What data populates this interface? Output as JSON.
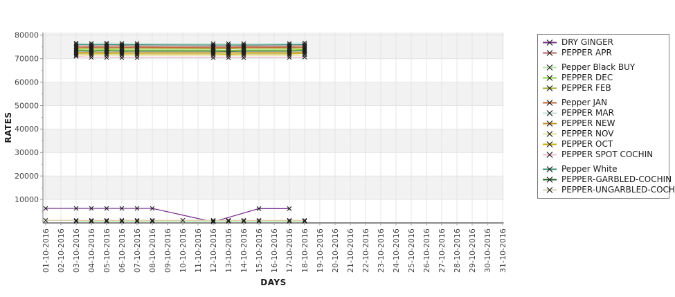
{
  "chart_data": {
    "type": "line",
    "title": "",
    "marker": "x",
    "x": {
      "label": "DAYS",
      "tick_labels": [
        "01-10-2016",
        "02-10-2016",
        "03-10-2016",
        "04-10-2016",
        "05-10-2016",
        "06-10-2016",
        "07-10-2016",
        "08-10-2016",
        "09-10-2016",
        "10-10-2016",
        "11-10-2016",
        "12-10-2016",
        "13-10-2016",
        "14-10-2016",
        "15-10-2016",
        "16-10-2016",
        "17-10-2016",
        "18-10-2016",
        "19-10-2016",
        "20-10-2016",
        "21-10-2016",
        "22-10-2016",
        "23-10-2016",
        "24-10-2016",
        "25-10-2016",
        "26-10-2016",
        "27-10-2016",
        "28-10-2016",
        "29-10-2016",
        "30-10-2016",
        "31-10-2016"
      ]
    },
    "y": {
      "label": "RATES",
      "tick_labels": [
        10000,
        20000,
        30000,
        40000,
        50000,
        60000,
        70000,
        80000
      ],
      "minor_step": 5000,
      "range": [
        0,
        81500
      ]
    },
    "legend": {
      "position": "right-outside",
      "group_breaks": [
        2,
        5,
        11
      ]
    },
    "plot_colors": {
      "band_gray": "#f2f2f2",
      "band_white": "#ffffff",
      "gridline": "#e4e4e4",
      "axis_line": "#8c8c8c",
      "baseline": "#787878",
      "tick": "#999999",
      "tick_label": "#3f3f3f",
      "marker": "#1a1a1a"
    },
    "series": [
      {
        "name": "DRY GINGER",
        "color": "#7b2f8e",
        "points": [
          [
            1,
            6200
          ],
          [
            3,
            6200
          ],
          [
            4,
            6200
          ],
          [
            5,
            6200
          ],
          [
            6,
            6200
          ],
          [
            7,
            6200
          ],
          [
            8,
            6200
          ],
          [
            12,
            450
          ],
          [
            15,
            6100
          ],
          [
            17,
            6100
          ]
        ]
      },
      {
        "name": "PEPPER APR",
        "color": "#bb5f5f",
        "points": [
          [
            3,
            75400
          ],
          [
            4,
            75300
          ],
          [
            5,
            75400
          ],
          [
            6,
            75400
          ],
          [
            7,
            75300
          ],
          [
            12,
            75200
          ],
          [
            13,
            75200
          ],
          [
            14,
            75300
          ],
          [
            17,
            75300
          ],
          [
            18,
            75500
          ]
        ]
      },
      {
        "name": "Pepper Black BUY",
        "color": "#b7e8a8",
        "points": [
          [
            3,
            700
          ],
          [
            4,
            700
          ],
          [
            5,
            700
          ],
          [
            6,
            700
          ],
          [
            7,
            700
          ],
          [
            8,
            700
          ],
          [
            12,
            700
          ],
          [
            13,
            700
          ],
          [
            14,
            700
          ],
          [
            15,
            700
          ],
          [
            17,
            700
          ],
          [
            18,
            700
          ]
        ]
      },
      {
        "name": "PEPPER DEC",
        "color": "#86d42f",
        "points": [
          [
            3,
            73800
          ],
          [
            4,
            73700
          ],
          [
            5,
            73800
          ],
          [
            6,
            73700
          ],
          [
            7,
            73700
          ],
          [
            12,
            73700
          ],
          [
            13,
            73600
          ],
          [
            14,
            73700
          ],
          [
            17,
            73700
          ],
          [
            18,
            73900
          ]
        ]
      },
      {
        "name": "PEPPER FEB",
        "color": "#a3a821",
        "points": [
          [
            3,
            74400
          ],
          [
            4,
            74300
          ],
          [
            5,
            74400
          ],
          [
            6,
            74400
          ],
          [
            7,
            74300
          ],
          [
            12,
            74300
          ],
          [
            13,
            74300
          ],
          [
            14,
            74300
          ],
          [
            17,
            74400
          ],
          [
            18,
            74500
          ]
        ]
      },
      {
        "name": "Pepper JAN",
        "color": "#bf6436",
        "points": [
          [
            3,
            74900
          ],
          [
            4,
            74800
          ],
          [
            5,
            74900
          ],
          [
            6,
            74800
          ],
          [
            7,
            74800
          ],
          [
            12,
            74700
          ],
          [
            13,
            74700
          ],
          [
            14,
            74800
          ],
          [
            17,
            74800
          ],
          [
            18,
            74900
          ]
        ]
      },
      {
        "name": "PEPPER MAR",
        "color": "#bfe0d5",
        "points": [
          [
            3,
            76600
          ],
          [
            4,
            76500
          ],
          [
            5,
            76600
          ],
          [
            6,
            76500
          ],
          [
            7,
            76500
          ],
          [
            12,
            76400
          ],
          [
            13,
            76400
          ],
          [
            14,
            76400
          ],
          [
            17,
            76500
          ],
          [
            18,
            76700
          ]
        ]
      },
      {
        "name": "PEPPER NEW",
        "color": "#bd8e1d",
        "points": [
          [
            3,
            72700
          ],
          [
            4,
            72600
          ],
          [
            5,
            72700
          ],
          [
            6,
            72600
          ],
          [
            7,
            72600
          ],
          [
            12,
            72600
          ],
          [
            13,
            72500
          ],
          [
            14,
            72600
          ],
          [
            17,
            72600
          ],
          [
            18,
            72800
          ]
        ]
      },
      {
        "name": "PEPPER NOV",
        "color": "#e5e293",
        "points": [
          [
            3,
            71500
          ],
          [
            4,
            71400
          ],
          [
            5,
            71500
          ],
          [
            6,
            71400
          ],
          [
            7,
            71400
          ],
          [
            12,
            71400
          ],
          [
            13,
            71300
          ],
          [
            14,
            71400
          ],
          [
            17,
            71400
          ],
          [
            18,
            71600
          ]
        ]
      },
      {
        "name": "PEPPER OCT",
        "color": "#c9ab06",
        "points": [
          [
            3,
            72100
          ],
          [
            4,
            72000
          ],
          [
            5,
            72100
          ],
          [
            6,
            72000
          ],
          [
            7,
            72000
          ],
          [
            12,
            72000
          ],
          [
            13,
            71900
          ],
          [
            14,
            72000
          ],
          [
            17,
            72000
          ],
          [
            18,
            72200
          ]
        ]
      },
      {
        "name": "PEPPER SPOT COCHIN",
        "color": "#f4bccf",
        "points": [
          [
            3,
            71000
          ],
          [
            4,
            70500
          ],
          [
            5,
            70500
          ],
          [
            6,
            70400
          ],
          [
            7,
            70400
          ],
          [
            12,
            70400
          ],
          [
            13,
            70400
          ],
          [
            14,
            70400
          ],
          [
            17,
            70500
          ],
          [
            18,
            70600
          ]
        ]
      },
      {
        "name": "Pepper White",
        "color": "#2f8a70",
        "points": [
          [
            3,
            76000
          ],
          [
            4,
            75900
          ],
          [
            5,
            76000
          ],
          [
            6,
            75900
          ],
          [
            7,
            75900
          ],
          [
            12,
            75800
          ],
          [
            13,
            75800
          ],
          [
            14,
            75800
          ],
          [
            17,
            75900
          ],
          [
            18,
            76000
          ]
        ]
      },
      {
        "name": "PEPPER-GARBLED-COCHIN",
        "color": "#215e21",
        "points": [
          [
            3,
            73300
          ],
          [
            4,
            73200
          ],
          [
            5,
            73300
          ],
          [
            6,
            73200
          ],
          [
            7,
            73200
          ],
          [
            12,
            73200
          ],
          [
            13,
            73100
          ],
          [
            14,
            73200
          ],
          [
            17,
            73200
          ],
          [
            18,
            73400
          ]
        ]
      },
      {
        "name": "PEPPER-UNGARBLED-COCHIN",
        "color": "#dbcfae",
        "points": [
          [
            1,
            1100
          ],
          [
            3,
            1100
          ],
          [
            4,
            1100
          ],
          [
            5,
            1100
          ],
          [
            6,
            1100
          ],
          [
            7,
            1100
          ],
          [
            8,
            1100
          ],
          [
            10,
            1100
          ],
          [
            12,
            1100
          ],
          [
            13,
            1100
          ],
          [
            14,
            1100
          ],
          [
            15,
            1100
          ],
          [
            17,
            1100
          ],
          [
            18,
            1100
          ]
        ]
      }
    ]
  }
}
